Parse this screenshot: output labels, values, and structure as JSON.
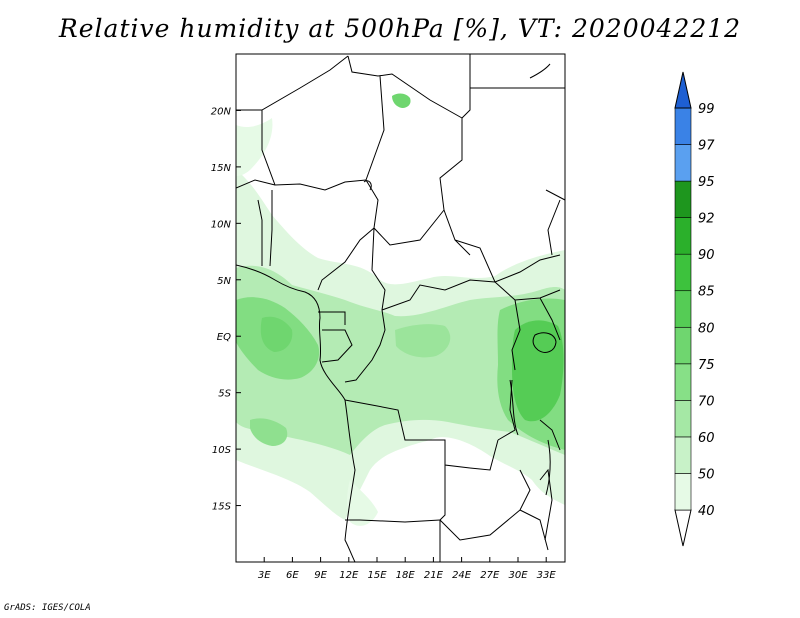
{
  "title": "Relative humidity at 500hPa [%], VT: 2020042212",
  "credit": "GrADS: IGES/COLA",
  "map": {
    "lon_min": 0,
    "lon_max": 35,
    "lat_min": -20,
    "lat_max": 25,
    "lon_ticks": [
      {
        "value": 3,
        "label": "3E"
      },
      {
        "value": 6,
        "label": "6E"
      },
      {
        "value": 9,
        "label": "9E"
      },
      {
        "value": 12,
        "label": "12E"
      },
      {
        "value": 15,
        "label": "15E"
      },
      {
        "value": 18,
        "label": "18E"
      },
      {
        "value": 21,
        "label": "21E"
      },
      {
        "value": 24,
        "label": "24E"
      },
      {
        "value": 27,
        "label": "27E"
      },
      {
        "value": 30,
        "label": "30E"
      },
      {
        "value": 33,
        "label": "33E"
      }
    ],
    "lat_ticks": [
      {
        "value": 20,
        "label": "20N"
      },
      {
        "value": 15,
        "label": "15N"
      },
      {
        "value": 10,
        "label": "10N"
      },
      {
        "value": 5,
        "label": "5N"
      },
      {
        "value": 0,
        "label": "EQ"
      },
      {
        "value": -5,
        "label": "5S"
      },
      {
        "value": -10,
        "label": "10S"
      },
      {
        "value": -15,
        "label": "15S"
      }
    ]
  },
  "colorbar": {
    "levels": [
      "40",
      "50",
      "60",
      "70",
      "75",
      "80",
      "85",
      "90",
      "92",
      "95",
      "97",
      "99"
    ],
    "colors": [
      "#e6fae6",
      "#c8f2c8",
      "#a5e8a5",
      "#87e087",
      "#6fd66f",
      "#55cc55",
      "#3dc23d",
      "#2bb02b",
      "#1e961e",
      "#5aa0f0",
      "#3a82e6",
      "#1e5fd2"
    ]
  },
  "palette": {
    "land": "#ffffff",
    "border": "#000000",
    "rh_40": "#e6fae6",
    "rh_60": "#a5e8a5",
    "rh_75": "#6fd66f",
    "rh_85": "#3dc23d"
  }
}
